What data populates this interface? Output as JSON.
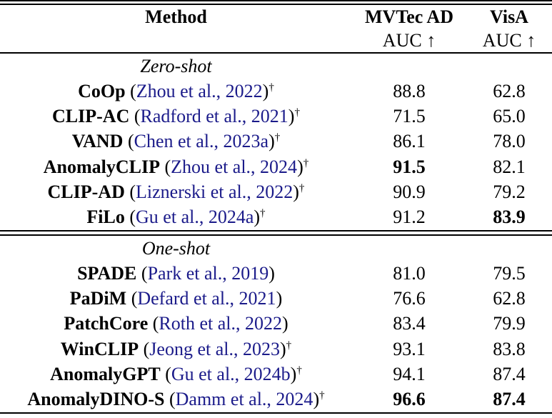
{
  "header": {
    "method_label": "Method",
    "columns": [
      {
        "label": "MVTec AD",
        "sub": "AUC ↑"
      },
      {
        "label": "VisA",
        "sub": "AUC ↑"
      }
    ]
  },
  "sections": [
    {
      "title": "Zero-shot",
      "rows": [
        {
          "name": "CoOp",
          "cite": "Zhou et al., 2022",
          "dagger": true,
          "values": [
            {
              "text": "88.8",
              "bold": false
            },
            {
              "text": "62.8",
              "bold": false
            }
          ]
        },
        {
          "name": "CLIP-AC",
          "cite": "Radford et al., 2021",
          "dagger": true,
          "values": [
            {
              "text": "71.5",
              "bold": false
            },
            {
              "text": "65.0",
              "bold": false
            }
          ]
        },
        {
          "name": "VAND",
          "cite": "Chen et al., 2023a",
          "dagger": true,
          "values": [
            {
              "text": "86.1",
              "bold": false
            },
            {
              "text": "78.0",
              "bold": false
            }
          ]
        },
        {
          "name": "AnomalyCLIP",
          "cite": "Zhou et al., 2024",
          "dagger": true,
          "values": [
            {
              "text": "91.5",
              "bold": true
            },
            {
              "text": "82.1",
              "bold": false
            }
          ]
        },
        {
          "name": "CLIP-AD",
          "cite": "Liznerski et al., 2022",
          "dagger": true,
          "values": [
            {
              "text": "90.9",
              "bold": false
            },
            {
              "text": "79.2",
              "bold": false
            }
          ]
        },
        {
          "name": "FiLo",
          "cite": "Gu et al., 2024a",
          "dagger": true,
          "values": [
            {
              "text": "91.2",
              "bold": false
            },
            {
              "text": "83.9",
              "bold": true
            }
          ]
        }
      ]
    },
    {
      "title": "One-shot",
      "rows": [
        {
          "name": "SPADE",
          "cite": "Park et al., 2019",
          "dagger": false,
          "values": [
            {
              "text": "81.0",
              "bold": false
            },
            {
              "text": "79.5",
              "bold": false
            }
          ]
        },
        {
          "name": "PaDiM",
          "cite": "Defard et al., 2021",
          "dagger": false,
          "values": [
            {
              "text": "76.6",
              "bold": false
            },
            {
              "text": "62.8",
              "bold": false
            }
          ]
        },
        {
          "name": "PatchCore",
          "cite": "Roth et al., 2022",
          "dagger": false,
          "values": [
            {
              "text": "83.4",
              "bold": false
            },
            {
              "text": "79.9",
              "bold": false
            }
          ]
        },
        {
          "name": "WinCLIP",
          "cite": "Jeong et al., 2023",
          "dagger": true,
          "values": [
            {
              "text": "93.1",
              "bold": false
            },
            {
              "text": "83.8",
              "bold": false
            }
          ]
        },
        {
          "name": "AnomalyGPT",
          "cite": "Gu et al., 2024b",
          "dagger": true,
          "values": [
            {
              "text": "94.1",
              "bold": false
            },
            {
              "text": "87.4",
              "bold": false
            }
          ]
        },
        {
          "name": "AnomalyDINO-S",
          "cite": "Damm et al., 2024",
          "dagger": true,
          "values": [
            {
              "text": "96.6",
              "bold": true
            },
            {
              "text": "87.4",
              "bold": true
            }
          ]
        }
      ]
    }
  ],
  "symbols": {
    "dagger": "†",
    "open_paren": "(",
    "close_paren": ")"
  },
  "colors": {
    "citation": "#1b1b8a",
    "text": "#000000",
    "rule": "#000000",
    "background": "#ffffff"
  }
}
